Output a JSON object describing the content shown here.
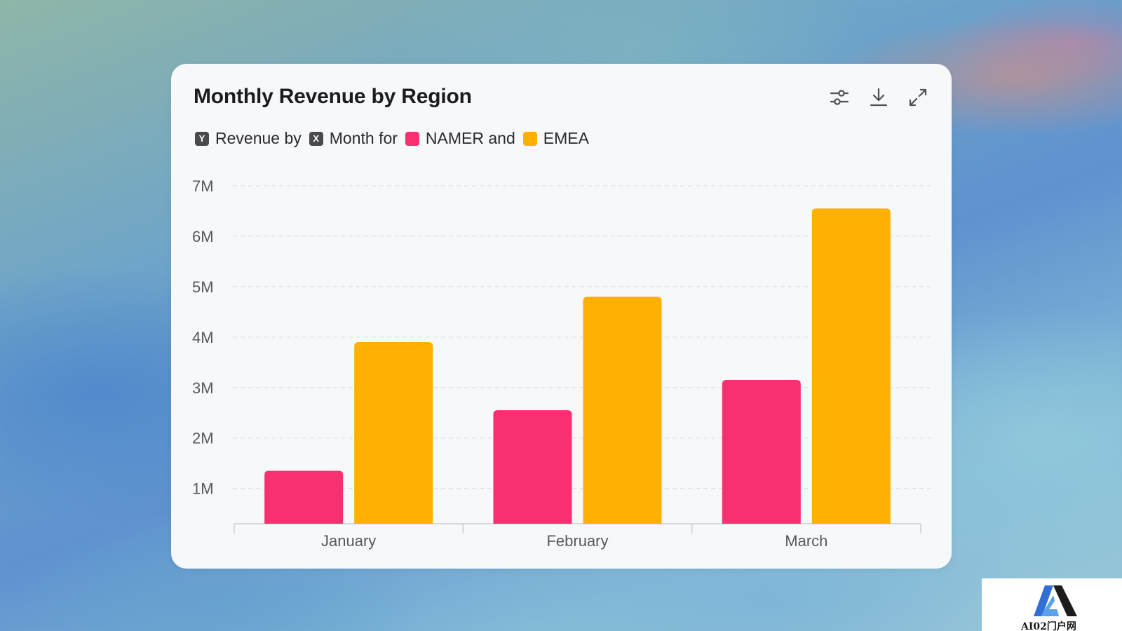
{
  "card": {
    "title": "Monthly Revenue by Region",
    "toolbar": {
      "filter_icon": "sliders-icon",
      "download_icon": "download-icon",
      "expand_icon": "expand-icon"
    }
  },
  "legend": {
    "y_key": "Y",
    "x_key": "X",
    "part1": "Revenue by",
    "part2": "Month for",
    "part3": "NAMER and",
    "part4": "EMEA"
  },
  "chart_data": {
    "type": "bar",
    "title": "Monthly Revenue by Region",
    "categories": [
      "January",
      "February",
      "March"
    ],
    "series": [
      {
        "name": "NAMER",
        "color": "#f82f71",
        "values": [
          1.35,
          2.55,
          3.15
        ]
      },
      {
        "name": "EMEA",
        "color": "#ffb000",
        "values": [
          3.9,
          4.8,
          6.55
        ]
      }
    ],
    "ylim": [
      0.3,
      7
    ],
    "yticks": [
      1,
      2,
      3,
      4,
      5,
      6,
      7
    ],
    "ytick_labels": [
      "1M",
      "2M",
      "3M",
      "4M",
      "5M",
      "6M",
      "7M"
    ],
    "grid": true,
    "legend_position": "top-left"
  },
  "watermark": {
    "text": "AI02门户网"
  }
}
